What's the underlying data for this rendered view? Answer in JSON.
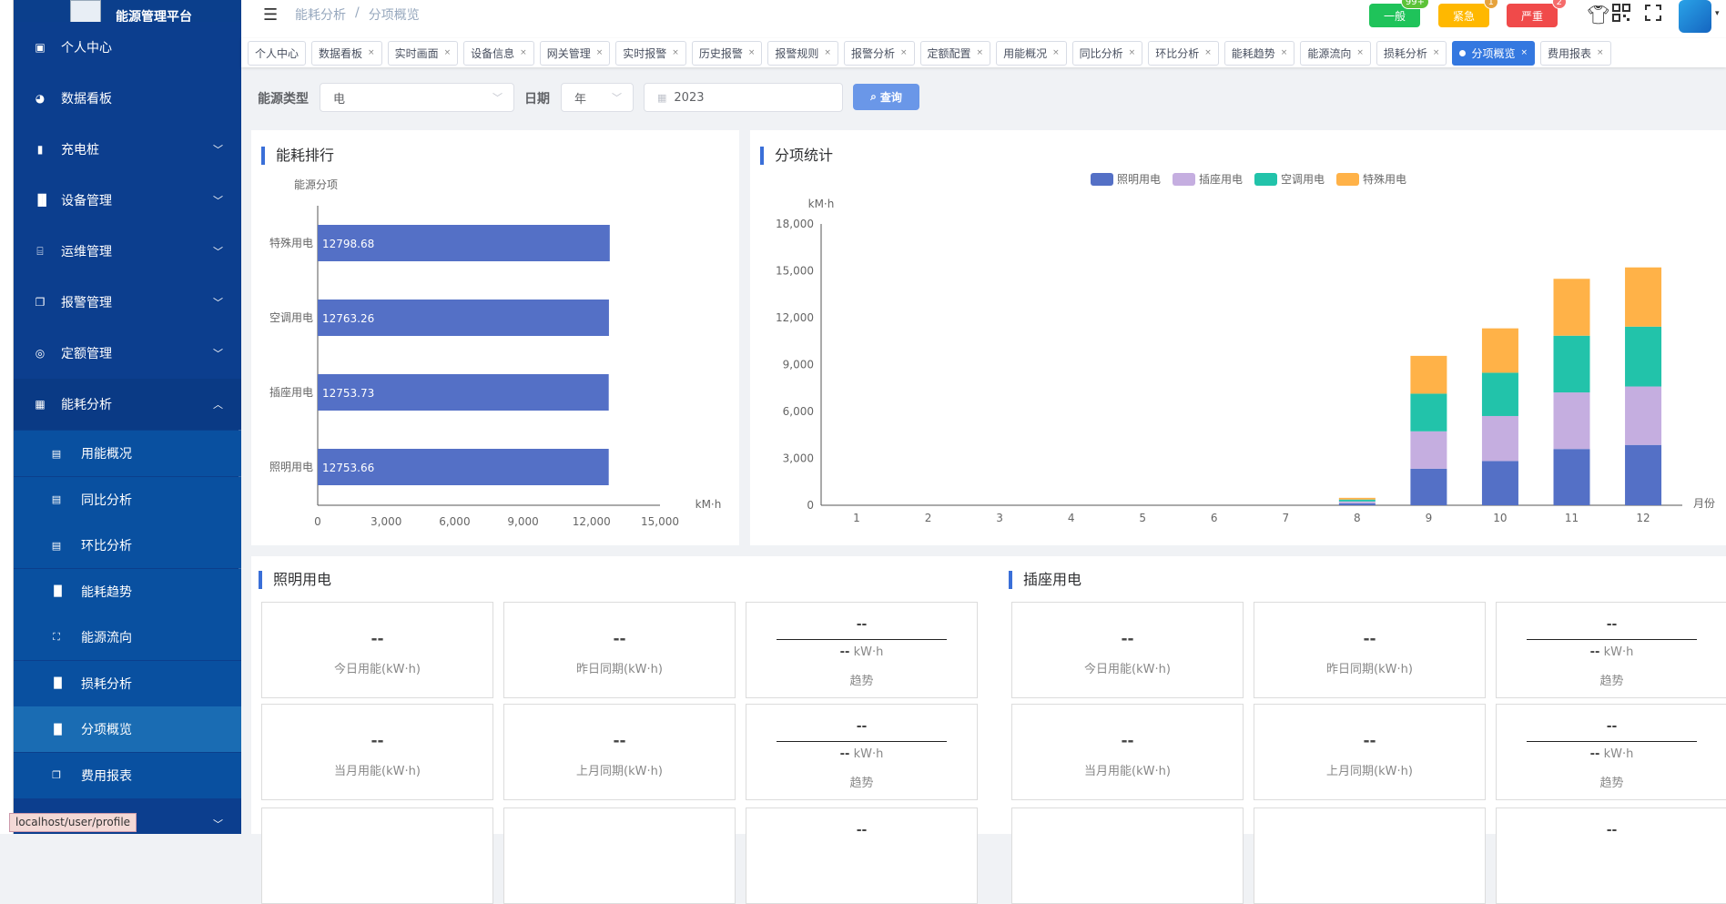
{
  "app": {
    "title": "能源管理平台"
  },
  "sidebar": {
    "items": [
      {
        "label": "个人中心",
        "icon": "id-card-icon"
      },
      {
        "label": "数据看板",
        "icon": "dashboard-icon"
      },
      {
        "label": "充电桩",
        "icon": "charger-icon"
      },
      {
        "label": "设备管理",
        "icon": "bar-chart-icon"
      },
      {
        "label": "运维管理",
        "icon": "maintenance-icon"
      },
      {
        "label": "报警管理",
        "icon": "copy-icon"
      },
      {
        "label": "定额管理",
        "icon": "lifebuoy-icon"
      },
      {
        "label": "能耗分析",
        "icon": "grid-icon"
      }
    ],
    "sub_items": [
      {
        "label": "用能概况",
        "icon": "table-icon"
      },
      {
        "label": "同比分析",
        "icon": "table-icon"
      },
      {
        "label": "环比分析",
        "icon": "table-icon"
      },
      {
        "label": "能耗趋势",
        "icon": "bar-chart-icon"
      },
      {
        "label": "能源流向",
        "icon": "tree-icon"
      },
      {
        "label": "损耗分析",
        "icon": "bar-chart-icon"
      },
      {
        "label": "分项概览",
        "icon": "bar-chart-icon"
      },
      {
        "label": "费用报表",
        "icon": "copy-icon"
      }
    ],
    "active": "分项概览"
  },
  "header": {
    "breadcrumb": [
      "能耗分析",
      "分项概览"
    ],
    "breadcrumb_sep": "/",
    "alarms": [
      {
        "label": "一般",
        "count": "99+",
        "color": "#1fc35a",
        "badge_color": "#5cc338"
      },
      {
        "label": "紧急",
        "count": "1",
        "color": "#ffb800",
        "badge_color": "#e6a23c"
      },
      {
        "label": "严重",
        "count": "2",
        "color": "#f04a4a",
        "badge_color": "#f56c6c"
      }
    ]
  },
  "tags": [
    {
      "label": "个人中心",
      "closable": false
    },
    {
      "label": "数据看板",
      "closable": true
    },
    {
      "label": "实时画面",
      "closable": true
    },
    {
      "label": "设备信息",
      "closable": true
    },
    {
      "label": "网关管理",
      "closable": true
    },
    {
      "label": "实时报警",
      "closable": true
    },
    {
      "label": "历史报警",
      "closable": true
    },
    {
      "label": "报警规则",
      "closable": true
    },
    {
      "label": "报警分析",
      "closable": true
    },
    {
      "label": "定额配置",
      "closable": true
    },
    {
      "label": "用能概况",
      "closable": true
    },
    {
      "label": "同比分析",
      "closable": true
    },
    {
      "label": "环比分析",
      "closable": true
    },
    {
      "label": "能耗趋势",
      "closable": true
    },
    {
      "label": "能源流向",
      "closable": true
    },
    {
      "label": "损耗分析",
      "closable": true
    },
    {
      "label": "分项概览",
      "closable": true,
      "active": true
    },
    {
      "label": "费用报表",
      "closable": true
    }
  ],
  "filter": {
    "energy_type_label": "能源类型",
    "energy_type_value": "电",
    "date_label": "日期",
    "date_unit_value": "年",
    "date_value": "2023",
    "query_label": "查询"
  },
  "ranking": {
    "title": "能耗排行"
  },
  "stats": {
    "title": "分项统计"
  },
  "chart_data": [
    {
      "type": "bar",
      "orientation": "horizontal",
      "ylabel": "能源分项",
      "xlabel": "kM·h",
      "categories": [
        "照明用电",
        "插座用电",
        "空调用电",
        "特殊用电"
      ],
      "values": [
        12753.66,
        12753.73,
        12763.26,
        12798.68
      ],
      "data_labels": [
        "12753.66",
        "12753.73",
        "12763.26",
        "12798.68"
      ],
      "xlim": [
        0,
        15000
      ],
      "xticks": [
        "0",
        "3,000",
        "6,000",
        "9,000",
        "12,000",
        "15,000"
      ],
      "color": "#5470c6",
      "grid": false
    },
    {
      "type": "bar",
      "stacked": true,
      "xlabel": "月份",
      "ylabel": "kM·h",
      "categories": [
        "1",
        "2",
        "3",
        "4",
        "5",
        "6",
        "7",
        "8",
        "9",
        "10",
        "11",
        "12"
      ],
      "ylim": [
        0,
        18000
      ],
      "yticks": [
        "0",
        "3,000",
        "6,000",
        "9,000",
        "12,000",
        "15,000",
        "18,000"
      ],
      "legend": "top-center",
      "grid": false,
      "series": [
        {
          "name": "照明用电",
          "color": "#5470c6",
          "values": [
            0,
            0,
            0,
            0,
            0,
            0,
            0,
            125,
            2340,
            2830,
            3600,
            3860
          ]
        },
        {
          "name": "插座用电",
          "color": "#c5aee0",
          "values": [
            0,
            0,
            0,
            0,
            0,
            0,
            0,
            120,
            2390,
            2880,
            3620,
            3740
          ]
        },
        {
          "name": "空调用电",
          "color": "#22c3aa",
          "values": [
            0,
            0,
            0,
            0,
            0,
            0,
            0,
            120,
            2410,
            2770,
            3630,
            3830
          ]
        },
        {
          "name": "特殊用电",
          "color": "#ffb248",
          "values": [
            0,
            0,
            0,
            0,
            0,
            0,
            0,
            110,
            2420,
            2840,
            3640,
            3790
          ]
        }
      ]
    }
  ],
  "detail_sections": [
    {
      "title": "照明用电",
      "rows": [
        {
          "a_val": "--",
          "a_cap": "今日用能(kW·h)",
          "b_val": "--",
          "b_cap": "昨日同期(kW·h)",
          "t_top": "--",
          "t_val": "--",
          "t_unit": "kW·h",
          "t_cap": "趋势"
        },
        {
          "a_val": "--",
          "a_cap": "当月用能(kW·h)",
          "b_val": "--",
          "b_cap": "上月同期(kW·h)",
          "t_top": "--",
          "t_val": "--",
          "t_unit": "kW·h",
          "t_cap": "趋势"
        },
        {
          "a_val": "",
          "a_cap": "",
          "b_val": "",
          "b_cap": "",
          "t_top": "--",
          "t_val": "",
          "t_unit": "",
          "t_cap": ""
        }
      ]
    },
    {
      "title": "插座用电",
      "rows": [
        {
          "a_val": "--",
          "a_cap": "今日用能(kW·h)",
          "b_val": "--",
          "b_cap": "昨日同期(kW·h)",
          "t_top": "--",
          "t_val": "--",
          "t_unit": "kW·h",
          "t_cap": "趋势"
        },
        {
          "a_val": "--",
          "a_cap": "当月用能(kW·h)",
          "b_val": "--",
          "b_cap": "上月同期(kW·h)",
          "t_top": "--",
          "t_val": "--",
          "t_unit": "kW·h",
          "t_cap": "趋势"
        },
        {
          "a_val": "",
          "a_cap": "",
          "b_val": "",
          "b_cap": "",
          "t_top": "--",
          "t_val": "",
          "t_unit": "",
          "t_cap": ""
        }
      ]
    }
  ],
  "status_bar": {
    "url": "localhost/user/profile"
  }
}
